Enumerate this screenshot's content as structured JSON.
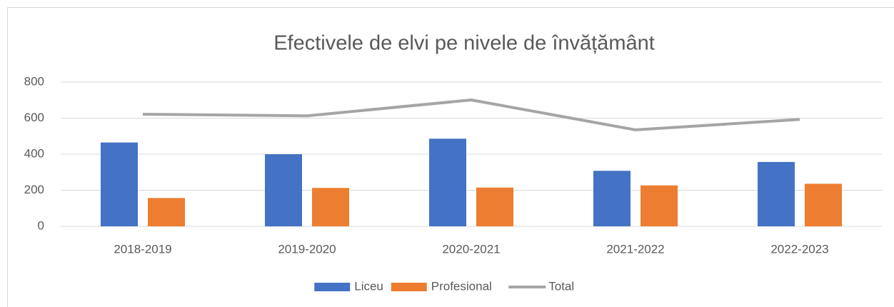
{
  "chart_data": {
    "type": "bar",
    "title": "Efectivele de elvi pe nivele de învățământ",
    "categories": [
      "2018-2019",
      "2019-2020",
      "2020-2021",
      "2021-2022",
      "2022-2023"
    ],
    "series": [
      {
        "name": "Liceu",
        "type": "bar",
        "color": "#4472c4",
        "values": [
          465,
          400,
          486,
          308,
          357
        ]
      },
      {
        "name": "Profesional",
        "type": "bar",
        "color": "#ed7d31",
        "values": [
          157,
          213,
          215,
          227,
          236
        ]
      },
      {
        "name": "Total",
        "type": "line",
        "color": "#a5a5a5",
        "values": [
          622,
          613,
          701,
          535,
          593
        ]
      }
    ],
    "ylim": [
      0,
      800
    ],
    "yticks": [
      0,
      200,
      400,
      600,
      800
    ],
    "grid": true,
    "legend": "bottom"
  }
}
